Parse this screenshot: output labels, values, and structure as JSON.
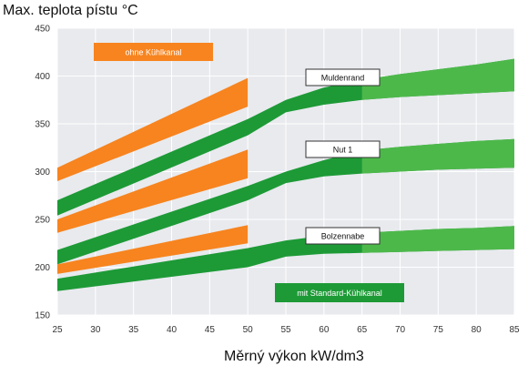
{
  "chart_data": {
    "type": "area",
    "title": "",
    "ylabel": "Max. teplota pístu °C",
    "xlabel": "Měrný výkon kW/dm3",
    "xlim": [
      25,
      85
    ],
    "ylim": [
      150,
      450
    ],
    "xticks": [
      "25",
      "30",
      "35",
      "40",
      "45",
      "50",
      "55",
      "60",
      "65",
      "70",
      "75",
      "80",
      "85"
    ],
    "yticks": [
      "150",
      "200",
      "250",
      "300",
      "350",
      "400",
      "450"
    ],
    "grid": true,
    "colors": {
      "orange": "#f7841f",
      "green": "#1d9a36",
      "green_light": "#4db84a",
      "plot_bg": "#e8eaee",
      "grid": "#ffffff"
    },
    "series": [
      {
        "name": "ohne Kühlkanal",
        "group": "Muldenrand",
        "color": "orange",
        "x": [
          25,
          50
        ],
        "lower": [
          290,
          368
        ],
        "upper": [
          304,
          398
        ]
      },
      {
        "name": "ohne Kühlkanal",
        "group": "Nut 1",
        "color": "orange",
        "x": [
          25,
          50
        ],
        "lower": [
          236,
          293
        ],
        "upper": [
          250,
          323
        ]
      },
      {
        "name": "ohne Kühlkanal",
        "group": "Bolzennabe",
        "color": "orange",
        "x": [
          25,
          50
        ],
        "lower": [
          193,
          225
        ],
        "upper": [
          203,
          244
        ]
      },
      {
        "name": "mit Standard-Kühlkanal",
        "group": "Muldenrand",
        "color": "green",
        "x": [
          25,
          50,
          55,
          60,
          65,
          70,
          75,
          80,
          85
        ],
        "lower": [
          254,
          338,
          362,
          370,
          375,
          378,
          380,
          382,
          384
        ],
        "upper": [
          270,
          355,
          375,
          388,
          396,
          402,
          407,
          412,
          418
        ]
      },
      {
        "name": "mit Standard-Kühlkanal",
        "group": "Nut 1",
        "color": "green",
        "x": [
          25,
          50,
          55,
          60,
          65,
          70,
          75,
          80,
          85
        ],
        "lower": [
          203,
          270,
          288,
          295,
          298,
          300,
          302,
          303,
          304
        ],
        "upper": [
          218,
          285,
          300,
          312,
          322,
          326,
          329,
          332,
          334
        ]
      },
      {
        "name": "mit Standard-Kühlkanal",
        "group": "Bolzennabe",
        "color": "green",
        "x": [
          25,
          50,
          55,
          60,
          65,
          70,
          75,
          80,
          85
        ],
        "lower": [
          175,
          200,
          211,
          214,
          215,
          216,
          217,
          218,
          219
        ],
        "upper": [
          188,
          220,
          228,
          233,
          236,
          238,
          240,
          241,
          243
        ]
      }
    ],
    "annotations": [
      {
        "text": "ohne Kühlkanal",
        "style": "orange"
      },
      {
        "text": "Muldenrand",
        "style": "outline"
      },
      {
        "text": "Nut 1",
        "style": "outline"
      },
      {
        "text": "Bolzennabe",
        "style": "outline"
      },
      {
        "text": "mit Standard-Kühlkanal",
        "style": "green"
      }
    ]
  }
}
